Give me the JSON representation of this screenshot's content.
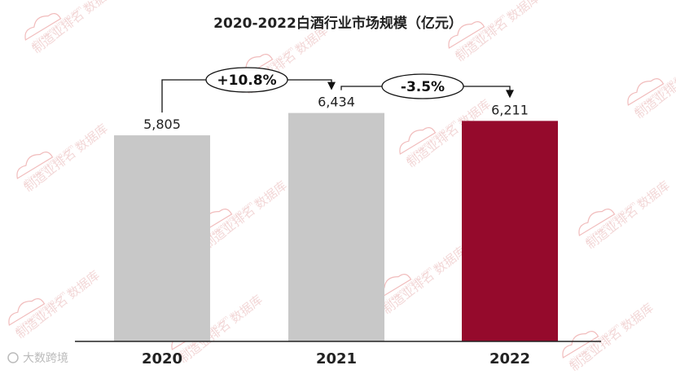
{
  "chart_data": {
    "type": "bar",
    "title": "2020-2022白酒行业市场规模（亿元）",
    "categories": [
      "2020",
      "2021",
      "2022"
    ],
    "values": [
      5805,
      6434,
      6211
    ],
    "value_labels": [
      "5,805",
      "6,434",
      "6,211"
    ],
    "ylim": [
      0,
      7000
    ],
    "grid": false,
    "legend": "none",
    "bar_colors": [
      "#c8c8c8",
      "#c8c8c8",
      "#950a2c"
    ],
    "annotations": [
      {
        "from": "2020",
        "to": "2021",
        "text": "+10.8%"
      },
      {
        "from": "2021",
        "to": "2022",
        "text": "-3.5%"
      }
    ]
  },
  "watermark": {
    "text": "制造业排名 数据库",
    "url": "zhizaoyepaiming.com",
    "color": "#e06b6b"
  },
  "brand_text": "大数跨境"
}
